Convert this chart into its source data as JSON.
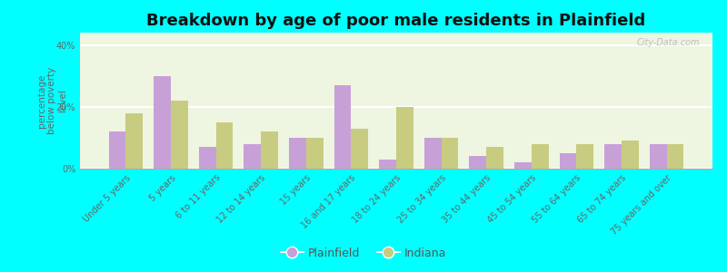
{
  "title": "Breakdown by age of poor male residents in Plainfield",
  "ylabel": "percentage\nbelow poverty\nlevel",
  "categories": [
    "Under 5 years",
    "5 years",
    "6 to 11 years",
    "12 to 14 years",
    "15 years",
    "16 and 17 years",
    "18 to 24 years",
    "25 to 34 years",
    "35 to 44 years",
    "45 to 54 years",
    "55 to 64 years",
    "65 to 74 years",
    "75 years and over"
  ],
  "plainfield": [
    12,
    30,
    7,
    8,
    10,
    27,
    3,
    10,
    4,
    2,
    5,
    8,
    8
  ],
  "indiana": [
    18,
    22,
    15,
    12,
    10,
    13,
    20,
    10,
    7,
    8,
    8,
    9,
    8
  ],
  "plainfield_color": "#c8a0d8",
  "indiana_color": "#c8cc80",
  "background_color": "#00ffff",
  "plot_bg_color": "#eef5e0",
  "title_fontsize": 13,
  "ylabel_fontsize": 7.5,
  "tick_fontsize": 7,
  "legend_fontsize": 9,
  "bar_width": 0.38,
  "ylim": [
    0,
    44
  ],
  "yticks": [
    0,
    20,
    40
  ],
  "ytick_labels": [
    "0%",
    "20%",
    "40%"
  ],
  "watermark": "City-Data.com"
}
